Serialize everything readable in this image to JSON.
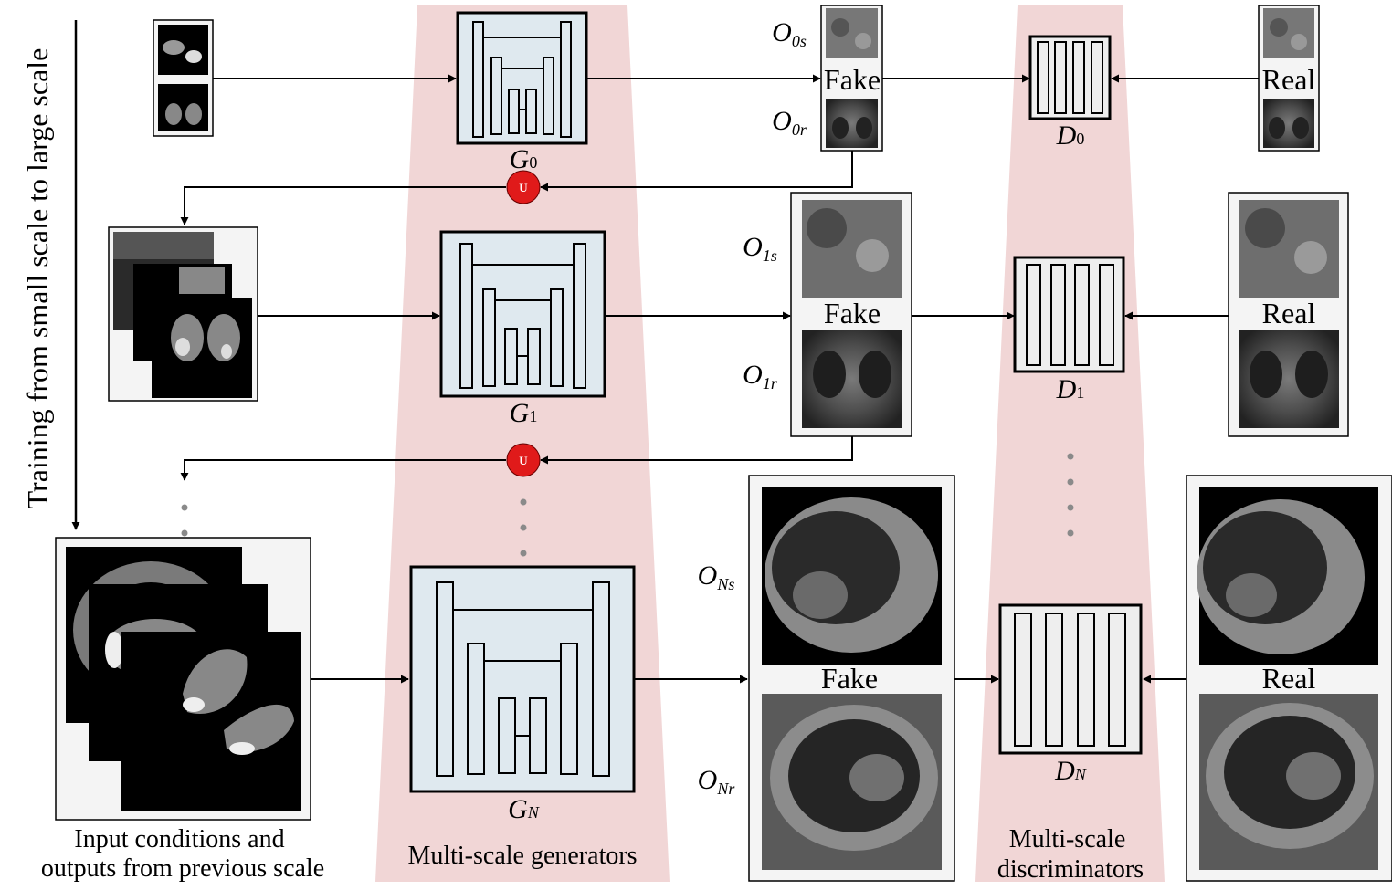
{
  "side_label": "Training from small scale to large scale",
  "generators_caption": "Multi-scale generators",
  "discriminators_caption": [
    "Multi-scale",
    "discriminators"
  ],
  "input_caption": [
    "Input conditions and",
    "outputs from previous scale"
  ],
  "fake_label": "Fake",
  "real_label": "Real",
  "upsample_symbol": "U",
  "generators": [
    {
      "name": "G",
      "sub": "0"
    },
    {
      "name": "G",
      "sub": "1"
    },
    {
      "name": "G",
      "sub": "N"
    }
  ],
  "discriminators": [
    {
      "name": "D",
      "sub": "0"
    },
    {
      "name": "D",
      "sub": "1"
    },
    {
      "name": "D",
      "sub": "N"
    }
  ],
  "outputs": [
    {
      "s_name": "O",
      "s_sub": "0s",
      "r_name": "O",
      "r_sub": "0r"
    },
    {
      "s_name": "O",
      "s_sub": "1s",
      "r_name": "O",
      "r_sub": "1r"
    },
    {
      "s_name": "O",
      "s_sub": "Ns",
      "r_name": "O",
      "r_sub": "Nr"
    }
  ],
  "colors": {
    "panel_pink": "#f1d6d6",
    "net_fill": "#dfe9ef",
    "disc_fill": "#eeeeee",
    "upsample_red": "#e01a1a",
    "dots_gray": "#8a8a8a"
  }
}
